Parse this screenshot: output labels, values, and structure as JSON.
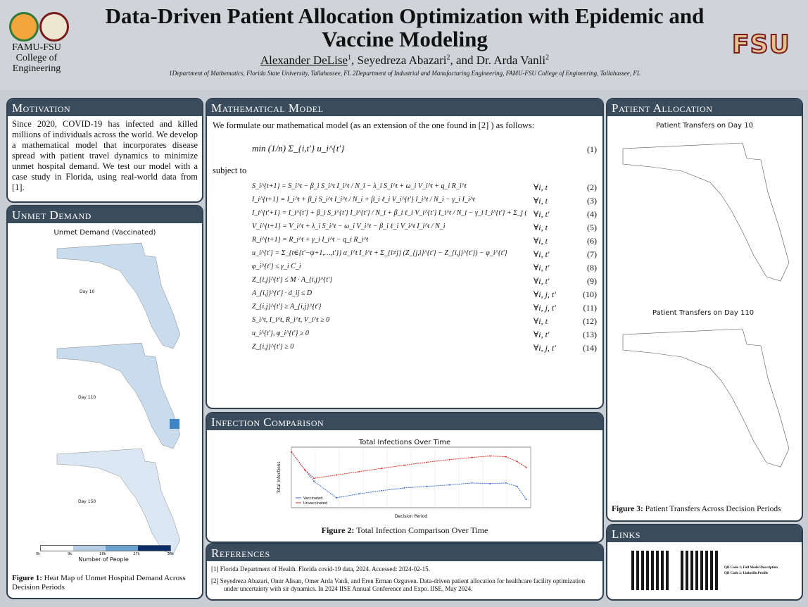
{
  "header": {
    "title": "Data-Driven Patient Allocation Optimization with Epidemic and Vaccine Modeling",
    "author1": "Alexander DeLise",
    "author2": ", Seyedreza Abazari",
    "author3": ", and Dr. Arda Vanli",
    "sup1": "1",
    "sup2": "2",
    "sup3": "2",
    "affiliations": "1Department of Mathematics, Florida State University, Tallahassee, FL 2Department of Industrial and Manufacturing Engineering, FAMU-FSU College of Engineering, Tallahassee, FL",
    "college": "FAMU-FSU College of Engineering",
    "fsu_logo": "FSU"
  },
  "motivation": {
    "heading": "Motivation",
    "text": "Since 2020, COVID-19 has infected and killed millions of individuals across the world. We develop a mathematical model that incorporates disease spread with patient travel dynamics to minimize unmet hospital demand. We test our model with a case study in Florida, using real-world data from [1]."
  },
  "unmet": {
    "heading": "Unmet Demand",
    "chart_title": "Unmet Demand (Vaccinated)",
    "day_labels": [
      "Day 10",
      "Day 110",
      "Day 150"
    ],
    "legend_ticks": [
      "0k",
      "9k",
      "18k",
      "27k",
      "36k"
    ],
    "legend_label": "Number of People",
    "legend_colors": [
      "#ffffff",
      "#b7cfe6",
      "#6aa3d0",
      "#2c6fb1",
      "#0b2e6b"
    ],
    "caption_bold": "Figure 1:",
    "caption": " Heat Map of Unmet Hospital Demand Across Decision Periods"
  },
  "model": {
    "heading": "Mathematical Model",
    "intro": "We formulate our mathematical model (as an extension of the one found in [2] ) as follows:",
    "subject_to": "subject to",
    "objective": "min (1/n) Σ_{i,t'} u_i^{t'}",
    "equations": [
      {
        "lhs": "S_i^{t+1} = S_i^t − β_i S_i^t I_i^t / N_i − λ_i S_i^t + ω_i V_i^t + q_i R_i^t",
        "cond": "∀i, t",
        "num": "(2)"
      },
      {
        "lhs": "I_i^{t+1} = I_i^t + β_i S_i^t I_i^t / N_i + β_i ℓ_i V_i^{t'} I_i^t / N_i − γ_i I_i^t",
        "cond": "∀i, t",
        "num": "(3)"
      },
      {
        "lhs": "I_i^{t'+1} = I_i^{t'} + β_i S_i^{t'} I_i^{t'} / N_i + β_i ℓ_i V_i^{t'} I_i^t / N_i − γ_i I_i^{t'} + Σ_j (Z_{j,i}^{t'} − Z_{i,j}^{t'})",
        "cond": "∀i, t'",
        "num": "(4)"
      },
      {
        "lhs": "V_i^{t+1} = V_i^t + λ_i S_i^t − ω_i V_i^t − β_i ℓ_i V_i^t I_i^t / N_i",
        "cond": "∀i, t",
        "num": "(5)"
      },
      {
        "lhs": "R_i^{t+1} = R_i^t + γ_i I_i^t − q_i R_i^t",
        "cond": "∀i, t",
        "num": "(6)"
      },
      {
        "lhs": "u_i^{t'} = Σ_{t∈{t'−ψ+1,…,t'}} α_i^t I_i^t + Σ_{i≠j} (Z_{j,i}^{t'} − Z_{i,j}^{t'}) − φ_i^{t'}",
        "cond": "∀i, t'",
        "num": "(7)"
      },
      {
        "lhs": "φ_i^{t'} ≤ γ_i C_i",
        "cond": "∀i, t'",
        "num": "(8)"
      },
      {
        "lhs": "Z_{i,j}^{t'} ≤ M · A_{i,j}^{t'}",
        "cond": "∀i, t'",
        "num": "(9)"
      },
      {
        "lhs": "A_{i,j}^{t'} · d_ij ≤ D",
        "cond": "∀i, j, t'",
        "num": "(10)"
      },
      {
        "lhs": "Z_{i,j}^{t'} ≥ A_{i,j}^{t'}",
        "cond": "∀i, j, t'",
        "num": "(11)"
      },
      {
        "lhs": "S_i^t, I_i^t, R_i^t, V_i^t ≥ 0",
        "cond": "∀i, t",
        "num": "(12)"
      },
      {
        "lhs": "u_i^{t'}, φ_i^{t'} ≥ 0",
        "cond": "∀i, t'",
        "num": "(13)"
      },
      {
        "lhs": "Z_{i,j}^{t'} ≥ 0",
        "cond": "∀i, j, t'",
        "num": "(14)"
      }
    ],
    "obj_num": "(1)"
  },
  "infection": {
    "heading": "Infection Comparison",
    "caption_bold": "Figure 2:",
    "caption": " Total Infection Comparison Over Time",
    "chart_data": {
      "type": "line",
      "title": "Total Infections Over Time",
      "xlabel": "Decision Period",
      "ylabel": "Total Infections",
      "yscale": "log",
      "x": [
        0,
        6,
        10,
        20,
        30,
        40,
        50,
        60,
        70,
        80,
        88,
        95,
        100,
        104
      ],
      "series": [
        {
          "name": "Vaccinated",
          "color": "#3b6fd6",
          "values": [
            9.0,
            3.0,
            1.5,
            0.55,
            0.7,
            0.85,
            1.0,
            1.1,
            1.2,
            1.35,
            1.3,
            1.35,
            1.1,
            0.5
          ]
        },
        {
          "name": "Unvaccinated",
          "color": "#d9342b",
          "values": [
            9.0,
            3.0,
            1.8,
            2.2,
            2.7,
            3.3,
            4.0,
            4.8,
            5.6,
            6.4,
            7.0,
            6.7,
            5.0,
            3.5
          ]
        }
      ]
    }
  },
  "references": {
    "heading": "References",
    "items": [
      "[1]  Florida Department of Health. Florida covid-19 data, 2024. Accessed: 2024-02-15.",
      "[2]  Seyedreza Abazari, Onur Alisan, Omer Arda Vanli, and Eren Erman Ozguven. Data-driven patient allocation for healthcare facility optimization under uncertainty with sir dynamics. In 2024 IISE Annual Conference and Expo. IISE, May 2024."
    ]
  },
  "allocation": {
    "heading": "Patient Allocation",
    "title1": "Patient Transfers on Day 10",
    "title2": "Patient Transfers on Day 110",
    "caption_bold": "Figure 3:",
    "caption": " Patient Transfers Across Decision Periods"
  },
  "links": {
    "heading": "Links",
    "qr1": "QR Code 1: Full Model Description",
    "qr2": "QR Code 2: LinkedIn Profile"
  }
}
